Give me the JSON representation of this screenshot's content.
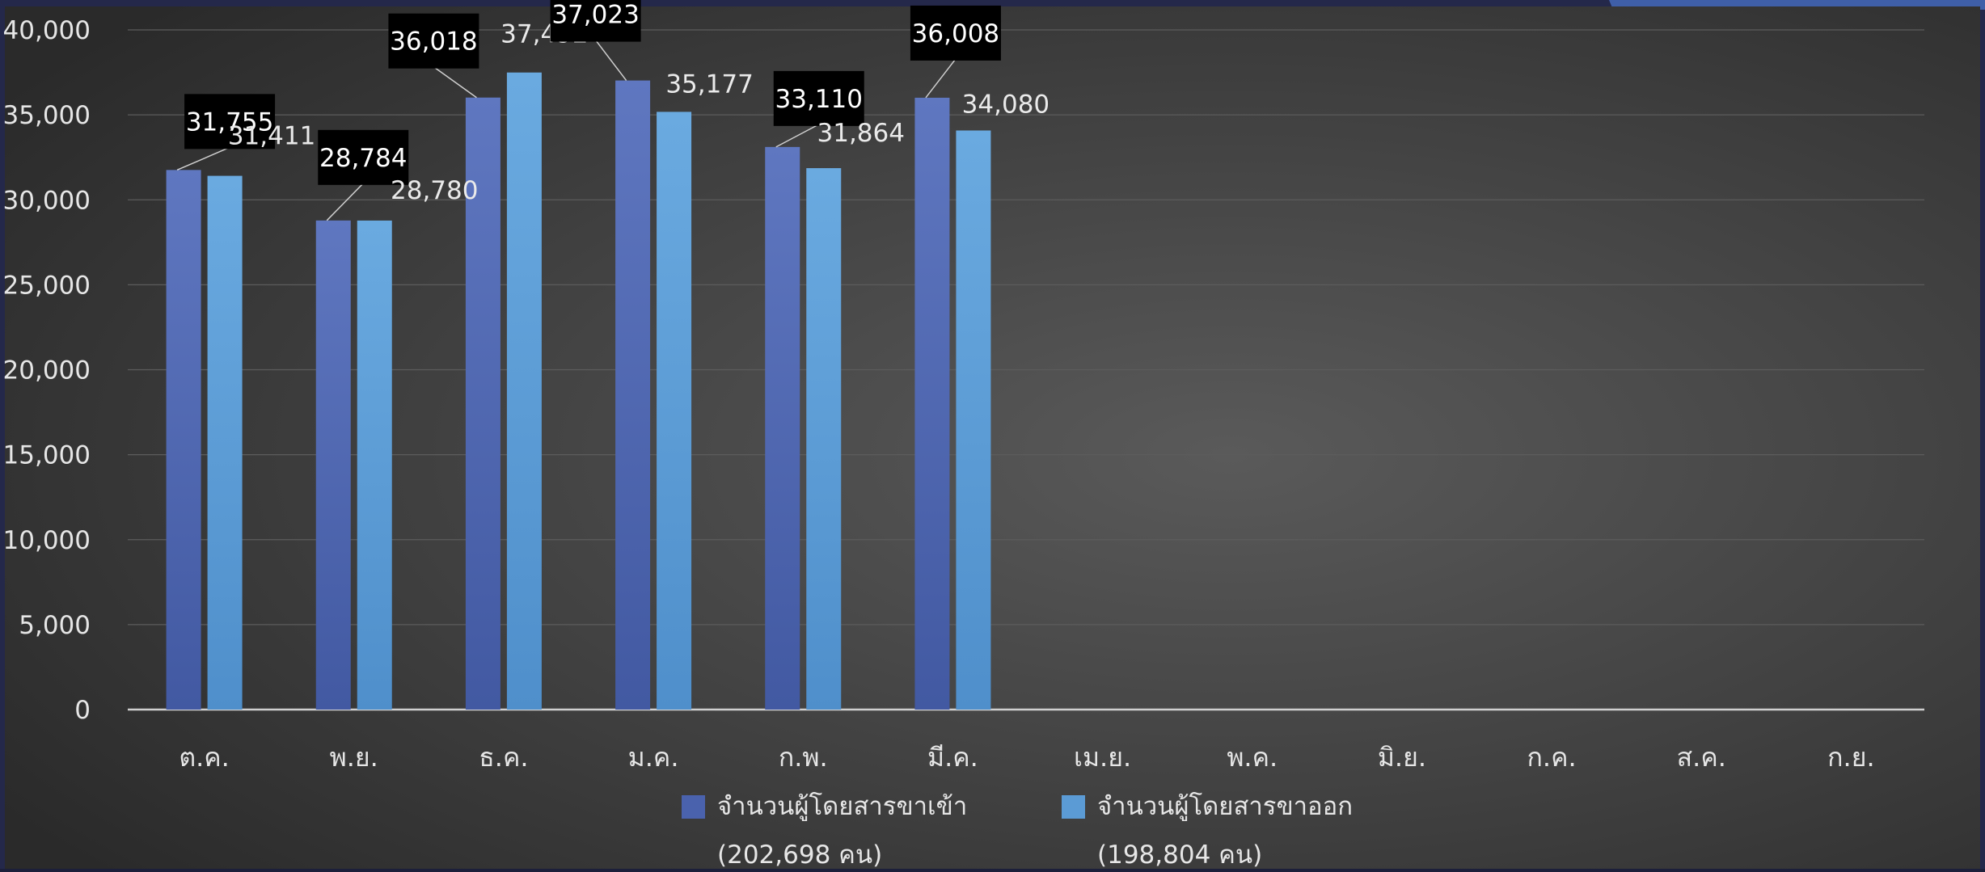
{
  "chart_data": {
    "type": "bar",
    "categories": [
      "ต.ค.",
      "พ.ย.",
      "ธ.ค.",
      "ม.ค.",
      "ก.พ.",
      "มี.ค.",
      "เม.ย.",
      "พ.ค.",
      "มิ.ย.",
      "ก.ค.",
      "ส.ค.",
      "ก.ย."
    ],
    "series": [
      {
        "name": "จำนวนผู้โดยสารขาเข้า",
        "total_label": "(202,698 คน)",
        "color": "#4a62ad",
        "values": [
          31755,
          28784,
          36018,
          37023,
          33110,
          36008,
          null,
          null,
          null,
          null,
          null,
          null
        ],
        "labels": [
          "31,755",
          "28,784",
          "36,018",
          "37,023",
          "33,110",
          "36,008",
          "",
          "",
          "",
          "",
          "",
          ""
        ]
      },
      {
        "name": "จำนวนผู้โดยสารขาออก",
        "total_label": "(198,804 คน)",
        "color": "#5b9bd5",
        "values": [
          31411,
          28780,
          37492,
          35177,
          31864,
          34080,
          null,
          null,
          null,
          null,
          null,
          null
        ],
        "labels": [
          "31,411",
          "28,780",
          "37,492",
          "35,177",
          "31,864",
          "34,080",
          "",
          "",
          "",
          "",
          "",
          ""
        ]
      }
    ],
    "ylim": [
      0,
      40000
    ],
    "yticks": [
      0,
      5000,
      10000,
      15000,
      20000,
      25000,
      30000,
      35000,
      40000
    ],
    "ytick_labels": [
      "0",
      "5,000",
      "10,000",
      "15,000",
      "20,000",
      "25,000",
      "30,000",
      "35,000",
      "40,000"
    ],
    "grid": true,
    "legend_position": "bottom",
    "title": "",
    "xlabel": "",
    "ylabel": ""
  }
}
